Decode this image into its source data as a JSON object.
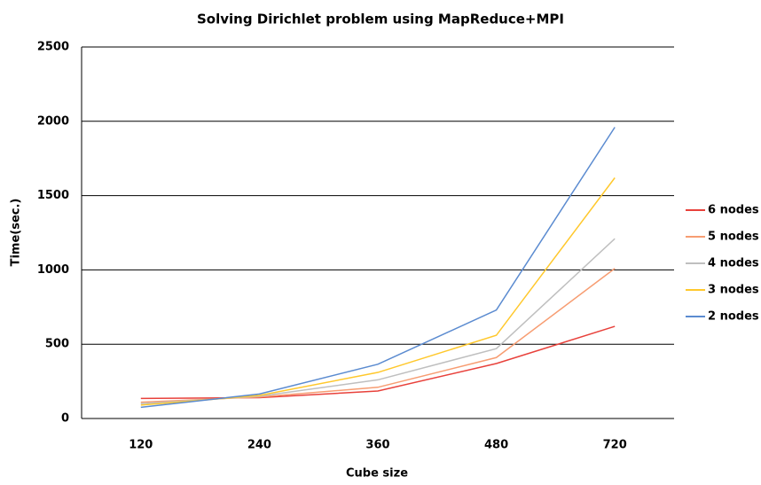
{
  "chart_data": {
    "type": "line",
    "title": "Solving Dirichlet problem using MapReduce+MPI",
    "x_label": "Cube size",
    "y_label": "Time(sec.)",
    "categories": [
      "120",
      "240",
      "360",
      "480",
      "720"
    ],
    "series": [
      {
        "name": "6 nodes",
        "color": "#e8413b",
        "values": [
          135,
          140,
          185,
          370,
          620
        ]
      },
      {
        "name": "5 nodes",
        "color": "#f79d72",
        "values": [
          110,
          145,
          210,
          410,
          1010
        ]
      },
      {
        "name": "4 nodes",
        "color": "#bfbfbf",
        "values": [
          100,
          150,
          260,
          470,
          1210
        ]
      },
      {
        "name": "3 nodes",
        "color": "#ffc82c",
        "values": [
          90,
          155,
          310,
          560,
          1620
        ]
      },
      {
        "name": "2 nodes",
        "color": "#5b8bd0",
        "values": [
          75,
          165,
          365,
          730,
          1960
        ]
      }
    ],
    "ylim": [
      0,
      2500
    ],
    "yticks": [
      0,
      500,
      1000,
      1500,
      2000,
      2500
    ],
    "grid": true,
    "legend": "right"
  }
}
